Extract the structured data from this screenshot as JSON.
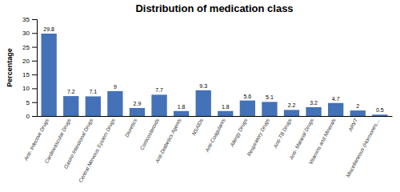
{
  "chart_data": {
    "type": "bar",
    "title": "Distribution of medication class",
    "ylabel": "Percentage",
    "categories": [
      "Anti- Infective Drugs",
      "Cardiovascular Drugs",
      "Gastro Intestional Drugs",
      "Central Nervous System Drugs",
      "Diuretics",
      "Corticosteroids",
      "Anti-Diabetics Agents",
      "NSAIDs",
      "Anti-Coagulants",
      "Allergy Drugs",
      "Respiratory Drugs",
      "Anti-TB Drugs",
      "Anti- Malarial Drugs",
      "Vitamins and Minerals",
      "ARVT",
      "Miscellaneous (Hormones,..."
    ],
    "values": [
      29.8,
      7.2,
      7.1,
      9,
      2.9,
      7.7,
      1.8,
      9.3,
      1.8,
      5.6,
      5.1,
      2.2,
      3.2,
      4.7,
      2,
      0.5
    ],
    "color": "#4472b8",
    "ylim": [
      0,
      35
    ],
    "yticks": [
      0,
      5,
      10,
      15,
      20,
      25,
      30,
      35
    ],
    "data_labels": true,
    "grid": false
  }
}
